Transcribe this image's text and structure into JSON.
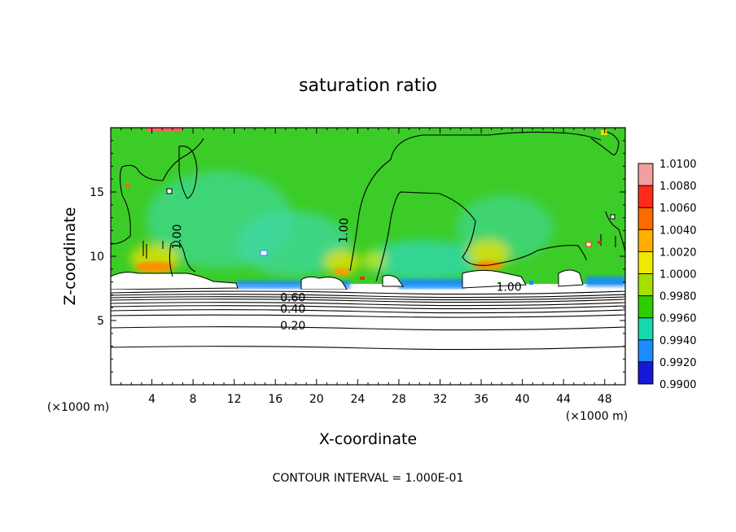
{
  "chart_data": {
    "type": "heatmap",
    "title": "saturation ratio",
    "xlabel": "X-coordinate",
    "ylabel": "Z-coordinate",
    "x_unit_label": "(×1000 m)",
    "z_unit_label": "(×1000 m)",
    "xlim": [
      0,
      50
    ],
    "ylim": [
      0,
      20
    ],
    "x_ticks": [
      4,
      8,
      12,
      16,
      20,
      24,
      28,
      32,
      36,
      40,
      44,
      48
    ],
    "y_ticks": [
      5,
      10,
      15
    ],
    "footer": "CONTOUR INTERVAL = 1.000E-01",
    "colorbar": {
      "range": [
        0.99,
        1.01
      ],
      "levels": [
        "1.0100",
        "1.0080",
        "1.0060",
        "1.0040",
        "1.0020",
        "1.0000",
        "0.9980",
        "0.9960",
        "0.9940",
        "0.9920",
        "0.9900"
      ],
      "colors": [
        "#f0a0a0",
        "#ff2a1a",
        "#ff6a00",
        "#ffb000",
        "#f0e800",
        "#a6e000",
        "#2ecc00",
        "#18d8b0",
        "#1b8cff",
        "#1818d8",
        "#7a1fb0"
      ]
    },
    "contour_labels": [
      {
        "text": "1.00",
        "x": 6.8,
        "z": 11.5,
        "rotate": -88
      },
      {
        "text": "1.00",
        "x": 23.0,
        "z": 12.0,
        "rotate": -88
      },
      {
        "text": "1.00",
        "x": 38.7,
        "z": 7.3,
        "rotate": 0
      },
      {
        "text": "0.60",
        "x": 17.7,
        "z": 6.5,
        "rotate": 0
      },
      {
        "text": "0.40",
        "x": 17.7,
        "z": 5.6,
        "rotate": 0
      },
      {
        "text": "0.20",
        "x": 17.7,
        "z": 4.3,
        "rotate": 0
      }
    ]
  }
}
